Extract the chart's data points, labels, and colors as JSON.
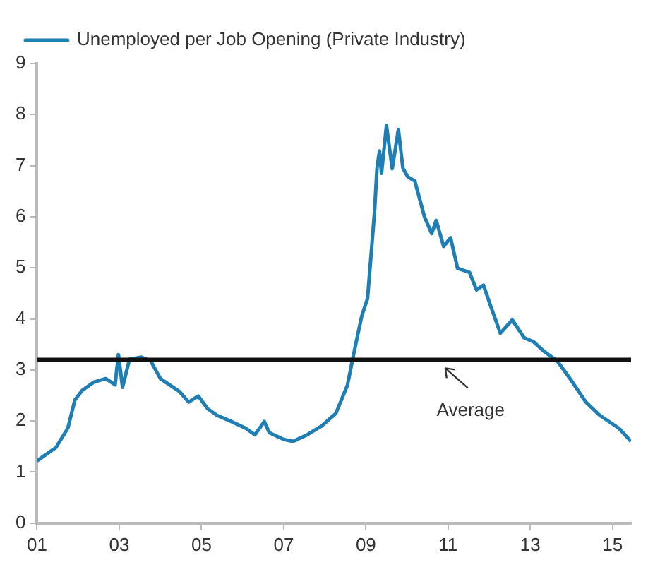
{
  "chart_data": {
    "type": "line",
    "legend": "top left",
    "grid": false,
    "marker": "none",
    "line_style": "solid",
    "xlim": [
      2001,
      2015.45
    ],
    "xticks": [
      {
        "value": 2001,
        "label": "01"
      },
      {
        "value": 2003,
        "label": "03"
      },
      {
        "value": 2005,
        "label": "05"
      },
      {
        "value": 2007,
        "label": "07"
      },
      {
        "value": 2009,
        "label": "09"
      },
      {
        "value": 2011,
        "label": "11"
      },
      {
        "value": 2013,
        "label": "13"
      },
      {
        "value": 2015,
        "label": "15"
      }
    ],
    "ylim": [
      0,
      9
    ],
    "yticks": [
      0,
      1,
      2,
      3,
      4,
      5,
      6,
      7,
      8,
      9
    ],
    "ref_lines": [
      {
        "axis": "y",
        "value": 3.2,
        "label": "Average",
        "color": "#111111"
      }
    ],
    "series": [
      {
        "name": "Unemployed per Job Opening (Private Industry)",
        "color": "#1f7fb4",
        "x": [
          2001.0,
          2001.46,
          2001.75,
          2001.92,
          2002.1,
          2002.38,
          2002.67,
          2002.9,
          2002.98,
          2003.08,
          2003.25,
          2003.54,
          2003.77,
          2004.0,
          2004.46,
          2004.69,
          2004.92,
          2005.15,
          2005.38,
          2005.73,
          2006.07,
          2006.3,
          2006.53,
          2006.65,
          2007.0,
          2007.23,
          2007.57,
          2007.92,
          2008.27,
          2008.55,
          2008.72,
          2008.9,
          2009.04,
          2009.21,
          2009.27,
          2009.33,
          2009.38,
          2009.5,
          2009.64,
          2009.79,
          2009.9,
          2010.02,
          2010.19,
          2010.42,
          2010.6,
          2010.71,
          2010.89,
          2011.06,
          2011.23,
          2011.52,
          2011.69,
          2011.86,
          2012.04,
          2012.27,
          2012.56,
          2012.85,
          2013.08,
          2013.31,
          2013.66,
          2014.0,
          2014.35,
          2014.69,
          2015.15,
          2015.45
        ],
        "values": [
          1.22,
          1.48,
          1.86,
          2.41,
          2.6,
          2.76,
          2.83,
          2.71,
          3.3,
          2.66,
          3.21,
          3.25,
          3.17,
          2.83,
          2.58,
          2.37,
          2.49,
          2.24,
          2.11,
          1.99,
          1.86,
          1.73,
          1.99,
          1.77,
          1.64,
          1.6,
          1.73,
          1.9,
          2.15,
          2.7,
          3.38,
          4.06,
          4.4,
          6.1,
          6.95,
          7.29,
          6.85,
          7.79,
          6.94,
          7.71,
          6.95,
          6.78,
          6.7,
          6.01,
          5.67,
          5.93,
          5.42,
          5.59,
          4.99,
          4.91,
          4.57,
          4.66,
          4.24,
          3.72,
          3.98,
          3.63,
          3.55,
          3.38,
          3.17,
          2.79,
          2.37,
          2.11,
          1.86,
          1.6
        ]
      }
    ]
  }
}
